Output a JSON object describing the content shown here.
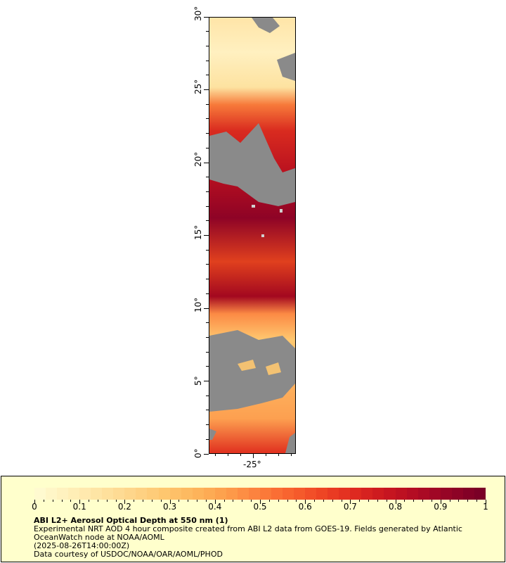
{
  "map": {
    "lat_ticks": [
      "0°",
      "5°",
      "10°",
      "15°",
      "20°",
      "25°",
      "30°"
    ],
    "lon_ticks": [
      "-25°"
    ],
    "lat_range": [
      0,
      30
    ],
    "land_color": "#8a8a8a"
  },
  "legend": {
    "title": "ABI L2+ Aerosol Optical Depth at 550 nm (1)",
    "line1": "Experimental NRT AOD 4 hour composite created from ABI L2 data from GOES-19. Fields generated by Atlantic",
    "line2": "OceanWatch node at NOAA/AOML",
    "line3": "(2025-08-26T14:00:00Z)",
    "line4": "Data courtesy of USDOC/NOAA/OAR/AOML/PHOD",
    "ticks": [
      "0",
      "0.1",
      "0.2",
      "0.3",
      "0.4",
      "0.5",
      "0.6",
      "0.7",
      "0.8",
      "0.9",
      "1"
    ],
    "range": [
      0,
      1
    ],
    "background": "#ffffcc",
    "colors": [
      "#fffad0",
      "#ffefb8",
      "#fee2a0",
      "#fed488",
      "#fec66e",
      "#fdb45a",
      "#fd9c4a",
      "#fc7e3c",
      "#f8612e",
      "#ee4424",
      "#df2a20",
      "#c9171f",
      "#b00b24",
      "#940426",
      "#7a0026"
    ]
  }
}
